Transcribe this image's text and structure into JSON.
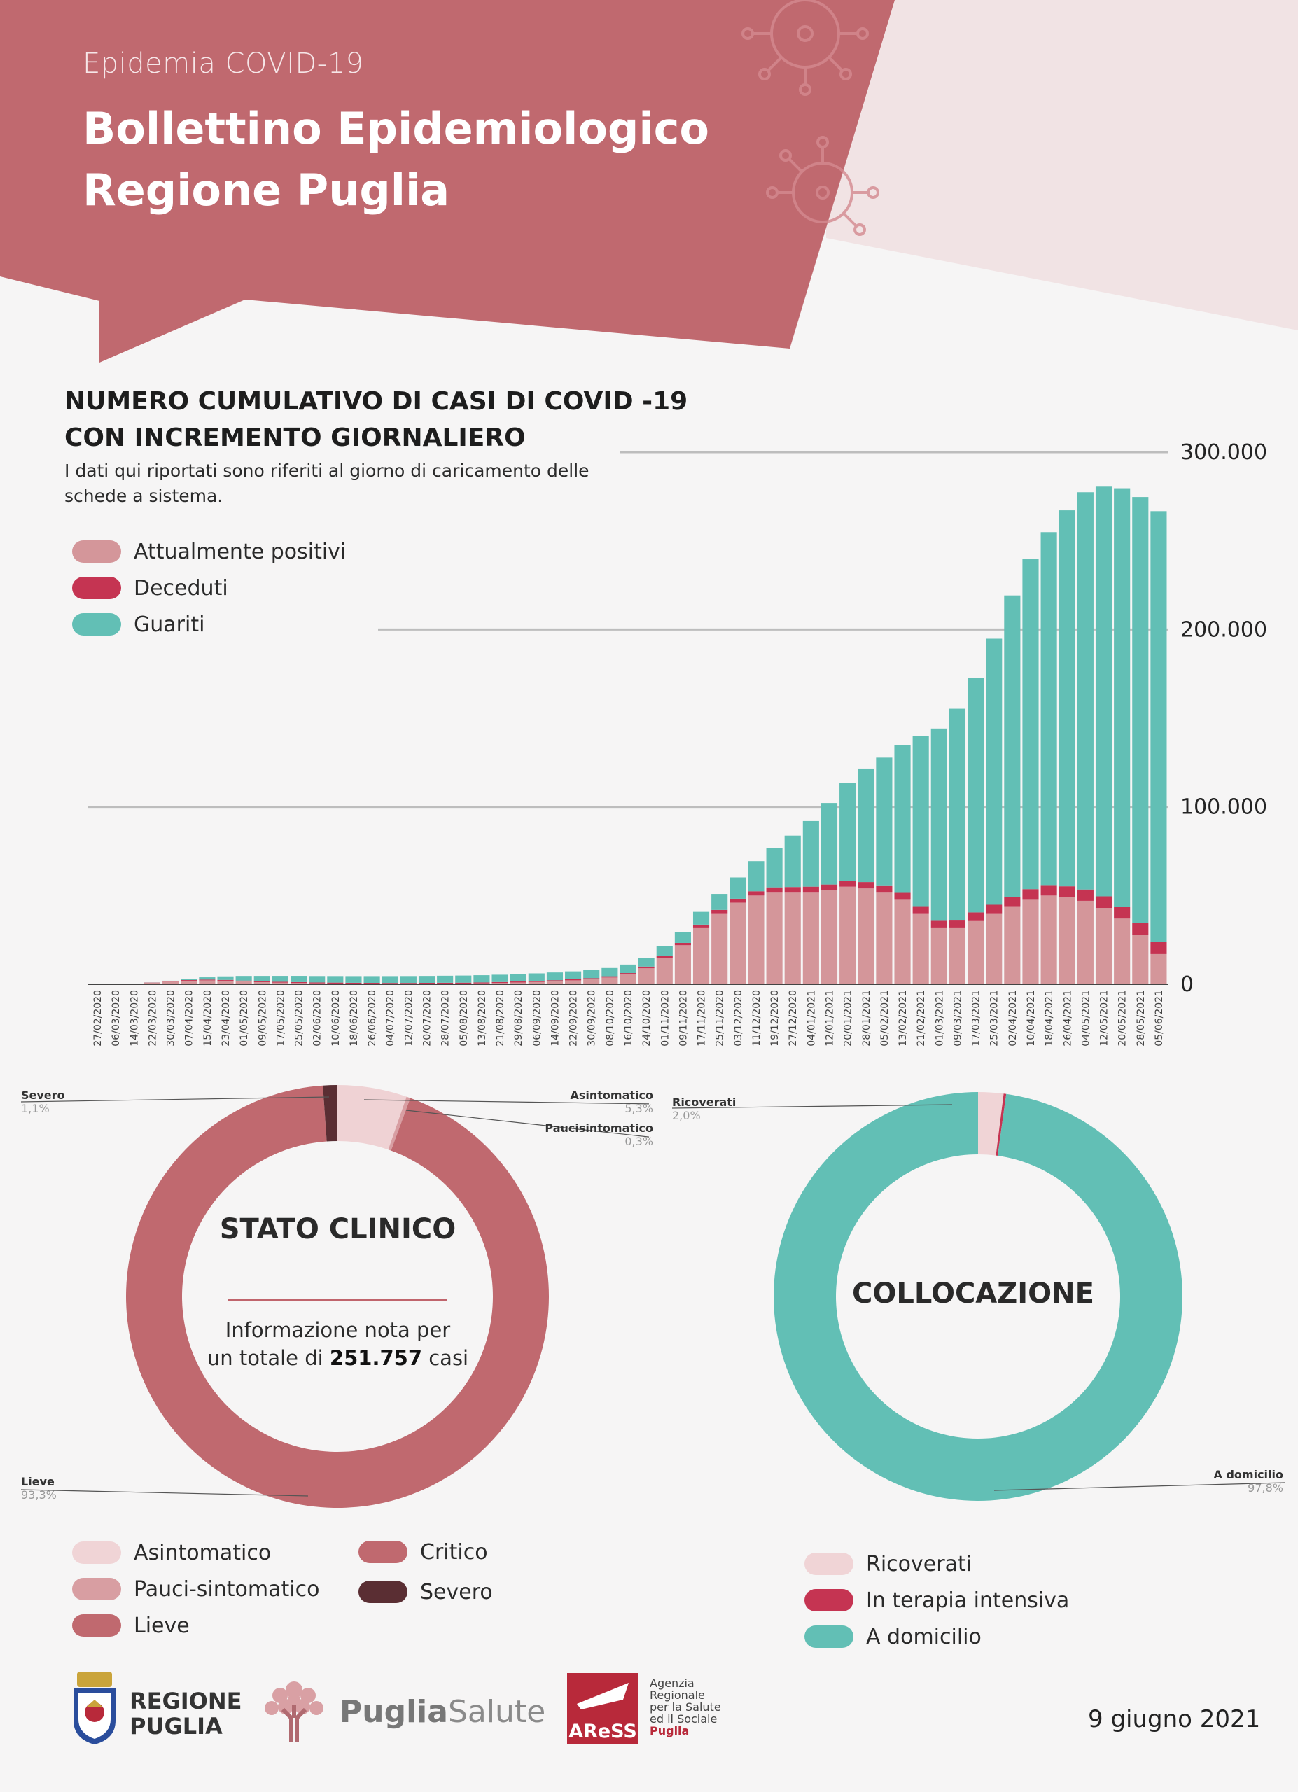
{
  "header": {
    "kicker": "Epidemia COVID-19",
    "title_line1": "Bollettino Epidemiologico",
    "title_line2": "Regione Puglia"
  },
  "colors": {
    "header_band": "#c0696f",
    "header_band_light": "#f1e3e4",
    "attualmente_positivi": "#d4969a",
    "deceduti": "#c53452",
    "guariti": "#62bfb5",
    "asintomatico": "#f0d4d6",
    "pauci": "#d89ea2",
    "lieve": "#c0696f",
    "critico": "#c0696f",
    "severo": "#5a2e33",
    "ricoverati": "#f0d4d6",
    "terapia_intensiva": "#c53452",
    "a_domicilio": "#62bfb5"
  },
  "chart_data": [
    {
      "type": "bar",
      "stacked": true,
      "title": "NUMERO CUMULATIVO DI CASI DI COVID -19",
      "subtitle": "CON INCREMENTO GIORNALIERO",
      "note": "I dati qui riportati sono riferiti al giorno di caricamento delle schede a sistema.",
      "ylim": [
        0,
        300000
      ],
      "yticks": [
        "300.000",
        "200.000",
        "100.000",
        "0"
      ],
      "ytick_values": [
        300000,
        200000,
        100000,
        0
      ],
      "grid": true,
      "legend_position": "top-left",
      "x_tick_labels": [
        "27/02/2020",
        "06/03/2020",
        "14/03/2020",
        "22/03/2020",
        "30/03/2020",
        "07/04/2020",
        "15/04/2020",
        "23/04/2020",
        "01/05/2020",
        "09/05/2020",
        "17/05/2020",
        "25/05/2020",
        "02/06/2020",
        "10/06/2020",
        "18/06/2020",
        "26/06/2020",
        "04/07/2020",
        "12/07/2020",
        "20/07/2020",
        "28/07/2020",
        "05/08/2020",
        "13/08/2020",
        "21/08/2020",
        "29/08/2020",
        "06/09/2020",
        "14/09/2020",
        "22/09/2020",
        "30/09/2020",
        "08/10/2020",
        "16/10/2020",
        "24/10/2020",
        "01/11/2020",
        "09/11/2020",
        "17/11/2020",
        "25/11/2020",
        "03/12/2020",
        "11/12/2020",
        "19/12/2020",
        "27/12/2020",
        "04/01/2021",
        "12/01/2021",
        "20/01/2021",
        "28/01/2021",
        "05/02/2021",
        "13/02/2021",
        "21/02/2021",
        "01/03/2021",
        "09/03/2021",
        "17/03/2021",
        "25/03/2021",
        "02/04/2021",
        "10/04/2021",
        "18/04/2021",
        "26/04/2021",
        "04/05/2021",
        "12/05/2021",
        "20/05/2021",
        "28/05/2021",
        "05/06/2021"
      ],
      "series": [
        {
          "name": "Attualmente positivi",
          "values": [
            0,
            100,
            300,
            800,
            1500,
            2000,
            2200,
            2000,
            1600,
            1200,
            900,
            700,
            500,
            400,
            300,
            250,
            200,
            200,
            250,
            300,
            350,
            500,
            700,
            1000,
            1300,
            1700,
            2200,
            2800,
            3800,
            5500,
            9000,
            15000,
            22000,
            32000,
            40000,
            46000,
            50000,
            52000,
            52000,
            52000,
            53000,
            55000,
            54000,
            52000,
            48000,
            40000,
            32000,
            32000,
            36000,
            40000,
            44000,
            48000,
            50000,
            49000,
            47000,
            43000,
            37000,
            28000,
            17000
          ]
        },
        {
          "name": "Deceduti",
          "values": [
            0,
            5,
            40,
            150,
            300,
            380,
            420,
            450,
            480,
            500,
            510,
            520,
            525,
            528,
            530,
            532,
            535,
            537,
            540,
            542,
            545,
            550,
            558,
            565,
            575,
            590,
            610,
            640,
            700,
            800,
            950,
            1100,
            1300,
            1600,
            1900,
            2200,
            2400,
            2600,
            2800,
            3000,
            3200,
            3400,
            3600,
            3750,
            3900,
            4000,
            4150,
            4300,
            4500,
            4800,
            5200,
            5600,
            5900,
            6200,
            6400,
            6550,
            6650,
            6700,
            6720
          ]
        },
        {
          "name": "Guariti",
          "values": [
            0,
            0,
            10,
            50,
            200,
            600,
            1300,
            2000,
            2600,
            3000,
            3300,
            3500,
            3600,
            3680,
            3750,
            3800,
            3850,
            3880,
            3900,
            3950,
            4000,
            4050,
            4100,
            4180,
            4250,
            4350,
            4450,
            4550,
            4650,
            4800,
            5000,
            5400,
            6100,
            7200,
            9000,
            12000,
            17000,
            22000,
            29000,
            37000,
            46000,
            55000,
            64000,
            72000,
            83000,
            96000,
            108000,
            119000,
            132000,
            150000,
            170000,
            186000,
            199000,
            212000,
            224000,
            231000,
            236000,
            240000,
            243000
          ]
        }
      ]
    },
    {
      "type": "pie",
      "variant": "donut",
      "title": "STATO CLINICO",
      "categories": [
        "Asintomatico",
        "Pauci-sintomatico",
        "Lieve",
        "Critico",
        "Severo"
      ],
      "values": [
        5.3,
        0.3,
        93.3,
        0.0,
        1.1
      ],
      "value_labels": [
        "5,3%",
        "0,3%",
        "93,3%",
        "",
        "1,1%"
      ],
      "callout_names": [
        "Asintomatico",
        "Paucisintomatico",
        "Lieve",
        "",
        "Severo"
      ],
      "info_prefix": "Informazione nota per",
      "info_mid": "un totale di",
      "info_total": "251.757",
      "info_suffix": "casi"
    },
    {
      "type": "pie",
      "variant": "donut",
      "title": "COLLOCAZIONE",
      "categories": [
        "Ricoverati",
        "In terapia intensiva",
        "A domicilio"
      ],
      "values": [
        2.0,
        0.2,
        97.8
      ],
      "value_labels": [
        "2,0%",
        "",
        "97,8%"
      ]
    }
  ],
  "footer": {
    "regione_line1": "REGIONE",
    "regione_line2": "PUGLIA",
    "puglia_salute_a": "Puglia",
    "puglia_salute_b": "Salute",
    "aress_logo": "AReSS",
    "aress_l1": "Agenzia",
    "aress_l2": "Regionale",
    "aress_l3": "per la Salute",
    "aress_l4": "ed il Sociale",
    "aress_l5": "Puglia",
    "date": "9 giugno 2021"
  }
}
